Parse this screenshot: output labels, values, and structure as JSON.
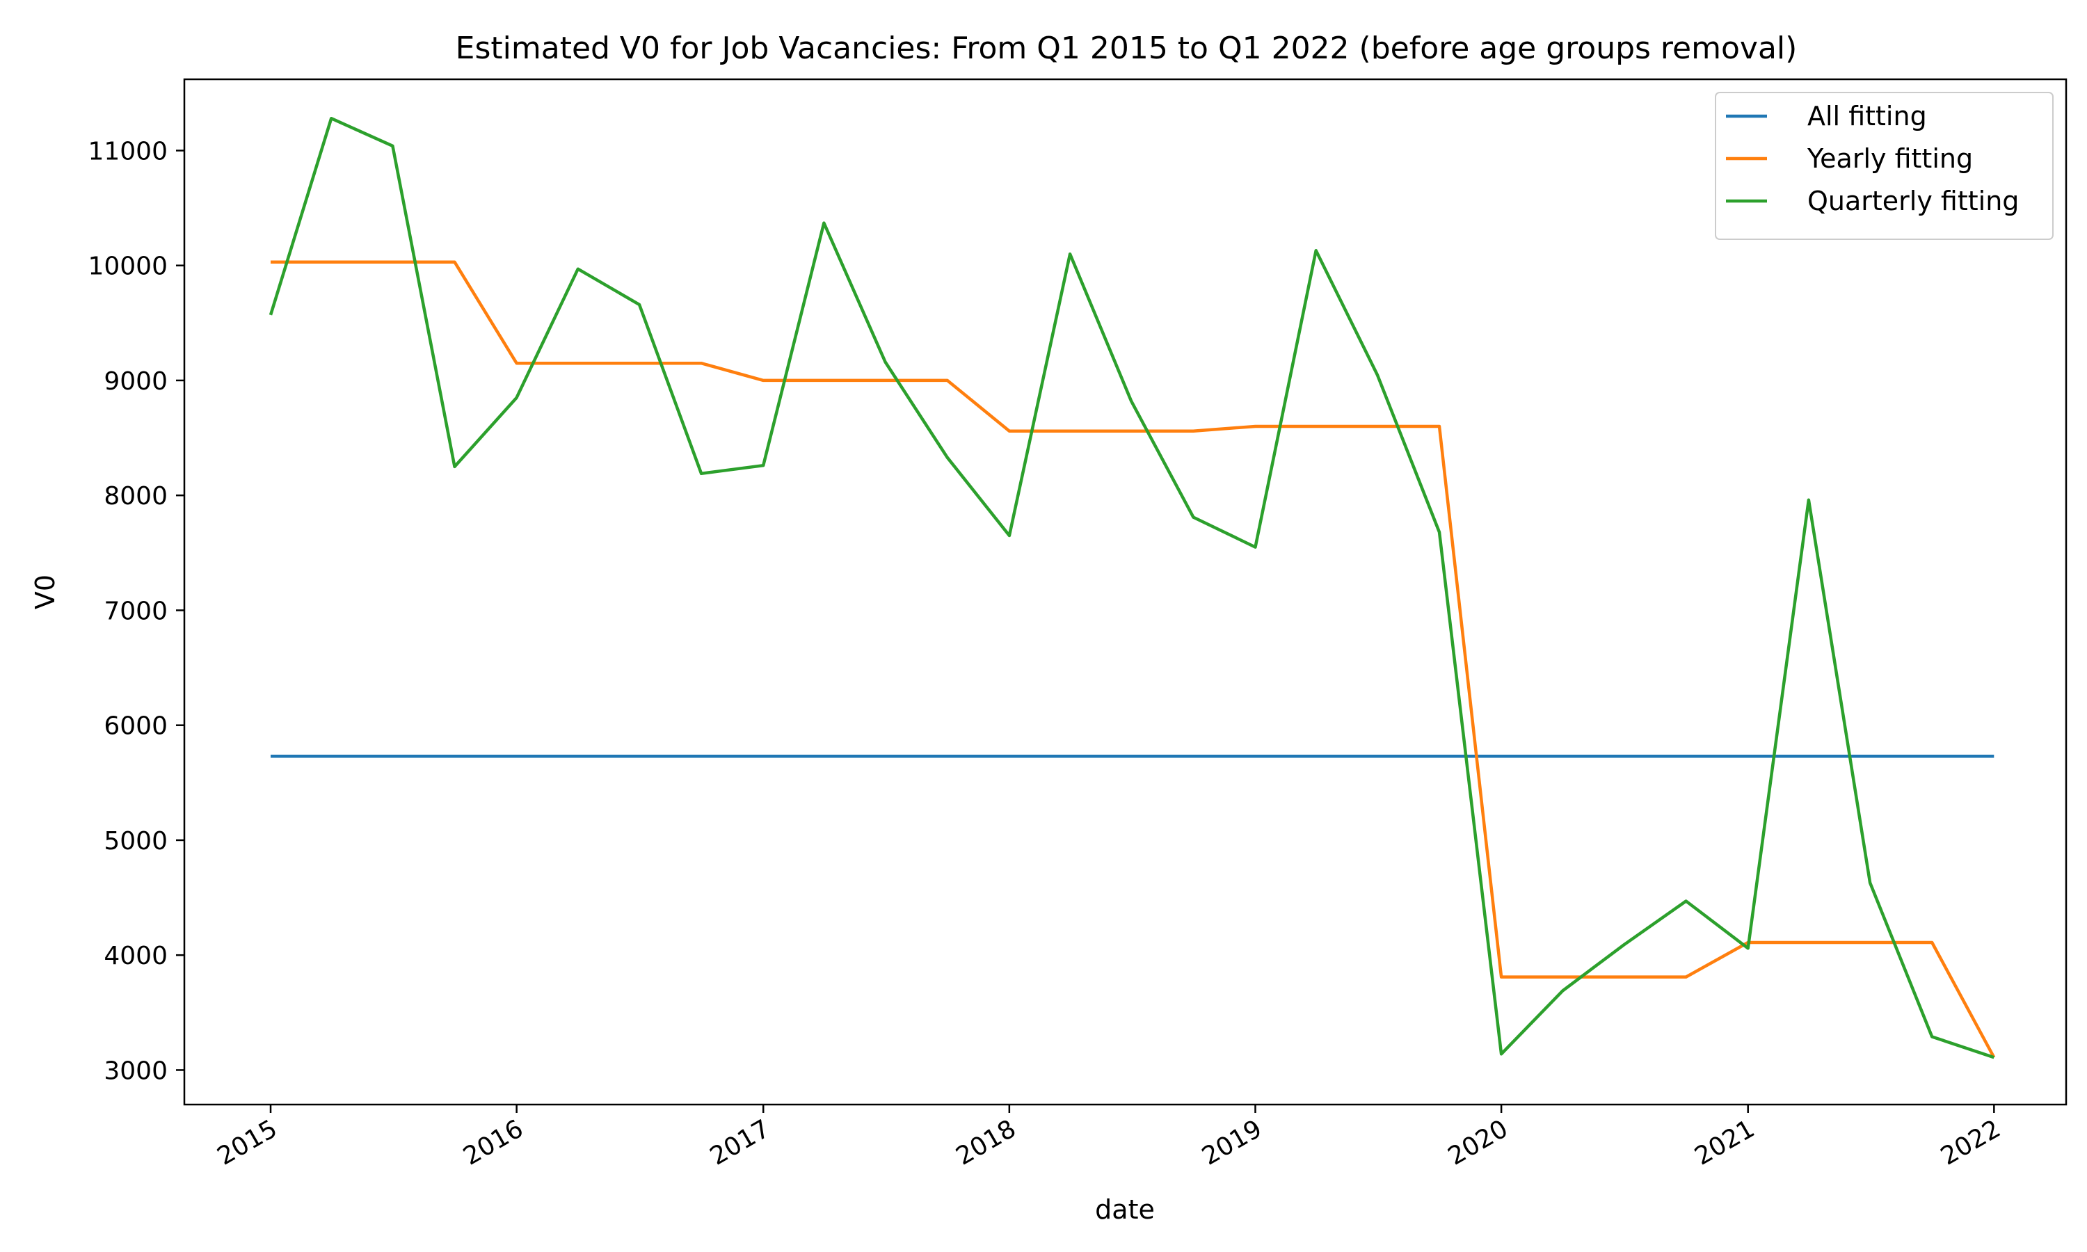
{
  "chart_data": {
    "type": "line",
    "title": "Estimated V0 for Job Vacancies: From Q1 2015 to Q1 2022 (before age groups removal)",
    "xlabel": "date",
    "ylabel": "V0",
    "x": [
      "2015-01-01",
      "2015-04-01",
      "2015-07-01",
      "2015-10-01",
      "2016-01-01",
      "2016-04-01",
      "2016-07-01",
      "2016-10-01",
      "2017-01-01",
      "2017-04-01",
      "2017-07-01",
      "2017-10-01",
      "2018-01-01",
      "2018-04-01",
      "2018-07-01",
      "2018-10-01",
      "2019-01-01",
      "2019-04-01",
      "2019-07-01",
      "2019-10-01",
      "2020-01-01",
      "2020-04-01",
      "2020-07-01",
      "2020-10-01",
      "2021-01-01",
      "2021-04-01",
      "2021-07-01",
      "2021-10-01",
      "2022-01-01"
    ],
    "xticks": [
      {
        "date": "2015-01-01",
        "label": "2015"
      },
      {
        "date": "2016-01-01",
        "label": "2016"
      },
      {
        "date": "2017-01-01",
        "label": "2017"
      },
      {
        "date": "2018-01-01",
        "label": "2018"
      },
      {
        "date": "2019-01-01",
        "label": "2019"
      },
      {
        "date": "2020-01-01",
        "label": "2020"
      },
      {
        "date": "2021-01-01",
        "label": "2021"
      },
      {
        "date": "2022-01-01",
        "label": "2022"
      }
    ],
    "yticks": [
      3000,
      4000,
      5000,
      6000,
      7000,
      8000,
      9000,
      10000,
      11000
    ],
    "xlim": [
      "2014-08-26",
      "2022-04-18"
    ],
    "ylim": [
      2700,
      11620
    ],
    "grid": false,
    "legend_position": "top-right",
    "series": [
      {
        "name": "All fitting",
        "color": "#1f77b4",
        "values": [
          5730,
          5730,
          5730,
          5730,
          5730,
          5730,
          5730,
          5730,
          5730,
          5730,
          5730,
          5730,
          5730,
          5730,
          5730,
          5730,
          5730,
          5730,
          5730,
          5730,
          5730,
          5730,
          5730,
          5730,
          5730,
          5730,
          5730,
          5730,
          5730
        ]
      },
      {
        "name": "Yearly fitting",
        "color": "#ff7f0e",
        "values": [
          10030,
          10030,
          10030,
          10030,
          9150,
          9150,
          9150,
          9150,
          9000,
          9000,
          9000,
          9000,
          8560,
          8560,
          8560,
          8560,
          8600,
          8600,
          8600,
          8600,
          3810,
          3810,
          3810,
          3810,
          4110,
          4110,
          4110,
          4110,
          3110
        ]
      },
      {
        "name": "Quarterly fitting",
        "color": "#2ca02c",
        "values": [
          9570,
          11280,
          11040,
          8250,
          8850,
          9970,
          9660,
          8190,
          8260,
          10370,
          9160,
          8330,
          7650,
          10100,
          8820,
          7810,
          7550,
          10130,
          9050,
          7680,
          3140,
          3690,
          4090,
          4470,
          4060,
          7960,
          4630,
          3290,
          3110
        ]
      }
    ]
  }
}
